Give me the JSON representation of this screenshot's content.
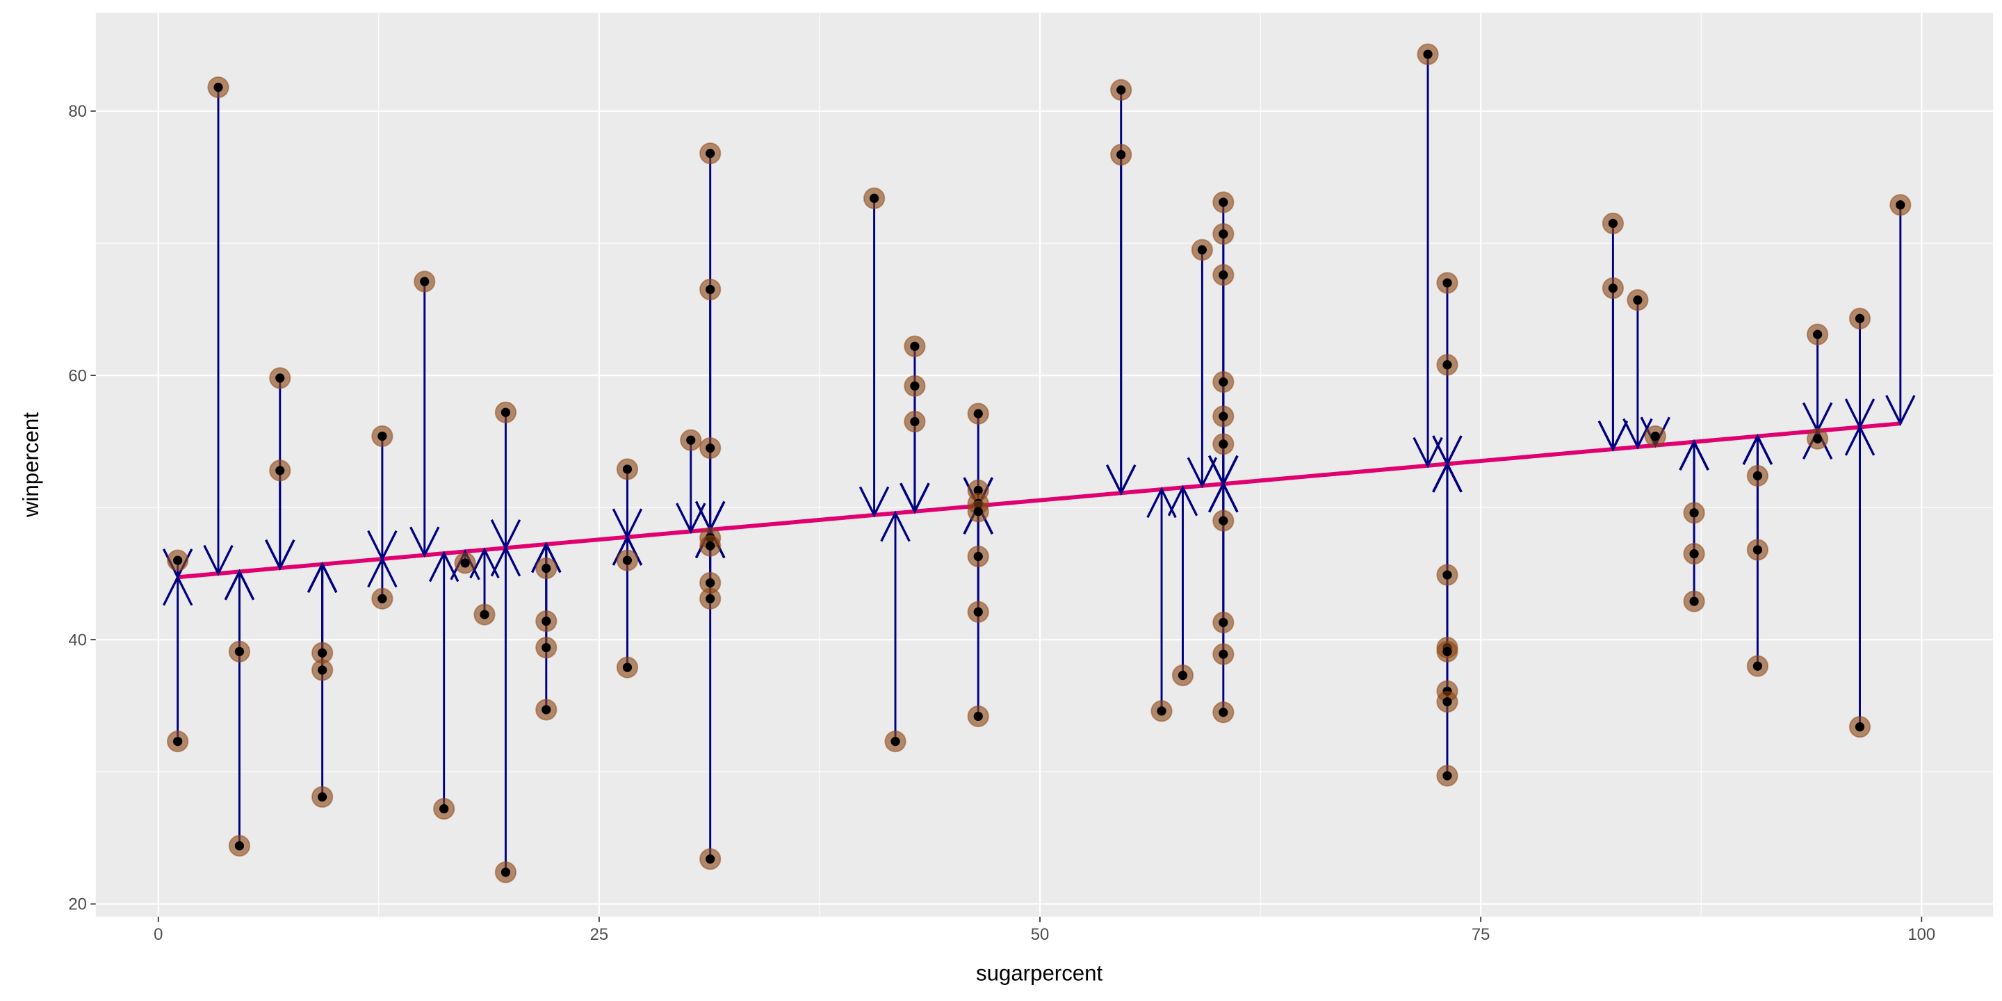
{
  "chart_data": {
    "type": "scatter",
    "title": "",
    "xlabel": "sugarpercent",
    "ylabel": "winpercent",
    "xlim": [
      -3,
      103
    ],
    "ylim": [
      19.5,
      87
    ],
    "xticks": [
      0,
      25,
      50,
      75,
      100
    ],
    "yticks": [
      20,
      40,
      60,
      80
    ],
    "xtick_labels": [
      "0",
      "25",
      "50",
      "75",
      "100"
    ],
    "ytick_labels": [
      "20",
      "40",
      "60",
      "80"
    ],
    "grid": true,
    "regression": {
      "intercept": 44.6,
      "slope": 0.119
    },
    "colors": {
      "panel": "#ebebeb",
      "grid": "#ffffff",
      "point_fill": "#8b4513",
      "point_center": "#000000",
      "residual_arrow": "#000080",
      "fit_line": "#e0006f"
    },
    "points": [
      [
        1.1,
        46.0
      ],
      [
        1.1,
        32.3
      ],
      [
        3.4,
        81.8
      ],
      [
        4.6,
        39.1
      ],
      [
        4.6,
        24.4
      ],
      [
        6.9,
        59.8
      ],
      [
        6.9,
        52.8
      ],
      [
        9.3,
        39.0
      ],
      [
        9.3,
        37.7
      ],
      [
        9.3,
        28.1
      ],
      [
        12.7,
        55.4
      ],
      [
        12.7,
        43.1
      ],
      [
        15.1,
        67.1
      ],
      [
        16.2,
        27.2
      ],
      [
        17.4,
        45.8
      ],
      [
        18.5,
        41.9
      ],
      [
        19.7,
        57.2
      ],
      [
        19.7,
        22.4
      ],
      [
        22.0,
        45.4
      ],
      [
        22.0,
        41.4
      ],
      [
        22.0,
        39.4
      ],
      [
        22.0,
        34.7
      ],
      [
        26.6,
        52.9
      ],
      [
        26.6,
        46.0
      ],
      [
        26.6,
        37.9
      ],
      [
        30.2,
        55.1
      ],
      [
        31.3,
        76.8
      ],
      [
        31.3,
        66.5
      ],
      [
        31.3,
        54.5
      ],
      [
        31.3,
        47.7
      ],
      [
        31.3,
        47.1
      ],
      [
        31.3,
        44.3
      ],
      [
        31.3,
        43.1
      ],
      [
        31.3,
        23.4
      ],
      [
        40.6,
        73.4
      ],
      [
        41.8,
        32.3
      ],
      [
        42.9,
        62.2
      ],
      [
        42.9,
        59.2
      ],
      [
        42.9,
        56.5
      ],
      [
        46.5,
        57.1
      ],
      [
        46.5,
        51.3
      ],
      [
        46.5,
        50.3
      ],
      [
        46.5,
        49.7
      ],
      [
        46.5,
        46.3
      ],
      [
        46.5,
        42.1
      ],
      [
        46.5,
        34.2
      ],
      [
        54.6,
        81.6
      ],
      [
        54.6,
        76.7
      ],
      [
        56.9,
        34.6
      ],
      [
        58.1,
        37.3
      ],
      [
        59.2,
        69.5
      ],
      [
        60.4,
        73.1
      ],
      [
        60.4,
        70.7
      ],
      [
        60.4,
        67.6
      ],
      [
        60.4,
        59.5
      ],
      [
        60.4,
        56.9
      ],
      [
        60.4,
        54.8
      ],
      [
        60.4,
        49.0
      ],
      [
        60.4,
        41.3
      ],
      [
        60.4,
        38.9
      ],
      [
        60.4,
        34.5
      ],
      [
        72.0,
        84.3
      ],
      [
        73.1,
        67.0
      ],
      [
        73.1,
        60.8
      ],
      [
        73.1,
        44.9
      ],
      [
        73.1,
        39.4
      ],
      [
        73.1,
        39.1
      ],
      [
        73.1,
        36.1
      ],
      [
        73.1,
        35.3
      ],
      [
        73.1,
        29.7
      ],
      [
        82.5,
        71.5
      ],
      [
        82.5,
        66.6
      ],
      [
        83.9,
        65.7
      ],
      [
        84.9,
        55.4
      ],
      [
        87.1,
        49.6
      ],
      [
        87.1,
        46.5
      ],
      [
        87.1,
        42.9
      ],
      [
        90.7,
        52.4
      ],
      [
        90.7,
        46.8
      ],
      [
        90.7,
        38.0
      ],
      [
        94.1,
        63.1
      ],
      [
        94.1,
        55.2
      ],
      [
        96.5,
        64.3
      ],
      [
        96.5,
        33.4
      ],
      [
        98.8,
        72.9
      ]
    ]
  }
}
